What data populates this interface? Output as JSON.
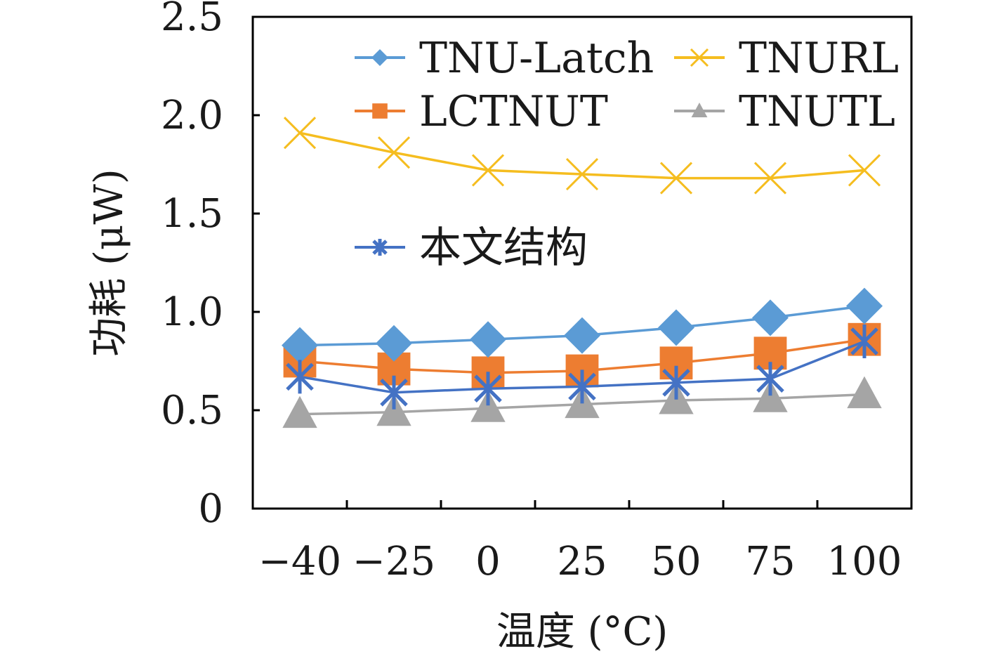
{
  "chart_data": {
    "type": "line",
    "xlabel": "温度 (°C)",
    "ylabel": "功耗 (μW)",
    "categories": [
      "−40",
      "−25",
      "0",
      "25",
      "50",
      "75",
      "100"
    ],
    "yticks": [
      "0",
      "0.5",
      "1.0",
      "1.5",
      "2.0",
      "2.5"
    ],
    "ylim": [
      0,
      2.5
    ],
    "grid": false,
    "legend_position": "inside-top",
    "series": [
      {
        "name": "TNU-Latch",
        "marker": "diamond",
        "color": "#5b9bd5",
        "values": [
          0.83,
          0.84,
          0.86,
          0.88,
          0.92,
          0.97,
          1.03
        ]
      },
      {
        "name": "TNURL",
        "marker": "x",
        "color": "#f5bd1f",
        "values": [
          1.91,
          1.81,
          1.72,
          1.7,
          1.68,
          1.68,
          1.72
        ]
      },
      {
        "name": "LCTNUT",
        "marker": "square",
        "color": "#ed7d31",
        "values": [
          0.75,
          0.71,
          0.69,
          0.7,
          0.74,
          0.79,
          0.86
        ]
      },
      {
        "name": "TNUTL",
        "marker": "triangle",
        "color": "#a5a5a5",
        "values": [
          0.48,
          0.49,
          0.51,
          0.53,
          0.55,
          0.56,
          0.58
        ]
      },
      {
        "name": "本文结构",
        "marker": "asterisk",
        "color": "#4472c4",
        "values": [
          0.67,
          0.59,
          0.61,
          0.62,
          0.64,
          0.66,
          0.85
        ]
      }
    ]
  }
}
